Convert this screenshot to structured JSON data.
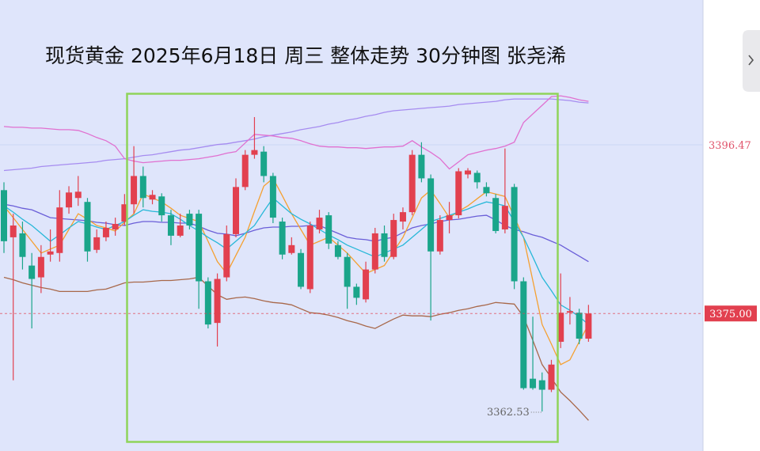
{
  "chart_data": {
    "type": "candlestick",
    "title": "现货黄金 2025年6月18日 周三 整体走势 30分钟图 张尧浠",
    "up_color": "#e2404f",
    "down_color": "#1aa58a",
    "ylim": [
      3357.5,
      3414.9
    ],
    "yticks": [
      3396.47
    ],
    "last_price": {
      "value": 3375,
      "label": "3375.00"
    },
    "low_label": 3362.53,
    "open": [
      3390.7,
      3384.7,
      3385.2,
      3381.1,
      3379.6,
      3382.5,
      3382.7,
      3388.5,
      3389.7,
      3389.2,
      3383.1,
      3384.7,
      3385.7,
      3386.7,
      3388.9,
      3392.5,
      3389.5,
      3389.9,
      3387.5,
      3384.9,
      3387.7,
      3387.7,
      3379.1,
      3373.8,
      3379.6,
      3385.1,
      3391.1,
      3395.2,
      3395.6,
      3392.5,
      3386.7,
      3382.7,
      3382.7,
      3378.1,
      3385.7,
      3387.5,
      3383.7,
      3382.2,
      3378.4,
      3376.8,
      3380.6,
      3385.2,
      3382.2,
      3386.7,
      3387.9,
      3395.2,
      3392.2,
      3382.9,
      3386.9,
      3387.5,
      3392.7,
      3392.9,
      3391.1,
      3389.7,
      3385.7,
      3391.1,
      3379.1,
      3366.7,
      3366.5,
      3365.3,
      3371.4,
      3375.1,
      3375.1,
      3371.8
    ],
    "high": [
      3391.7,
      3387.7,
      3386.7,
      3382.7,
      3383.7,
      3385.7,
      3390.7,
      3391.2,
      3392.5,
      3389.7,
      3385.7,
      3386.7,
      3387.2,
      3390.2,
      3396.3,
      3393.7,
      3390.7,
      3390.3,
      3388.2,
      3387.7,
      3388.2,
      3388.2,
      3379.6,
      3380.1,
      3386.2,
      3392.2,
      3395.8,
      3400.0,
      3396.3,
      3392.9,
      3387.2,
      3384.7,
      3383.2,
      3386.7,
      3388.2,
      3387.9,
      3384.2,
      3382.7,
      3378.8,
      3381.6,
      3385.9,
      3386.2,
      3387.7,
      3388.5,
      3395.8,
      3396.8,
      3392.7,
      3387.5,
      3389.2,
      3393.5,
      3393.5,
      3393.2,
      3391.7,
      3390.2,
      3396.0,
      3391.5,
      3379.6,
      3374.6,
      3367.5,
      3369.1,
      3380.1,
      3377.1,
      3375.6,
      3376.1
    ],
    "low": [
      3382.7,
      3366.5,
      3380.6,
      3373.1,
      3377.6,
      3381.6,
      3381.6,
      3387.7,
      3388.7,
      3381.6,
      3382.7,
      3384.2,
      3384.9,
      3386.2,
      3387.7,
      3388.5,
      3388.9,
      3386.7,
      3383.7,
      3384.7,
      3385.7,
      3375.6,
      3373.1,
      3370.8,
      3379.1,
      3384.7,
      3390.7,
      3394.7,
      3391.7,
      3386.5,
      3381.9,
      3382.5,
      3378.1,
      3377.6,
      3385.2,
      3383.2,
      3381.9,
      3375.6,
      3376.1,
      3376.4,
      3380.1,
      3381.6,
      3381.9,
      3385.7,
      3387.5,
      3391.7,
      3374.1,
      3382.5,
      3385.2,
      3387.1,
      3392.2,
      3390.9,
      3389.9,
      3385.2,
      3385.2,
      3378.1,
      3365.3,
      3365.3,
      3362.53,
      3365.0,
      3370.6,
      3373.6,
      3371.1,
      3371.4
    ],
    "close": [
      3384.2,
      3386.2,
      3382.2,
      3379.4,
      3382.2,
      3382.9,
      3388.5,
      3390.4,
      3390.5,
      3382.9,
      3384.7,
      3385.9,
      3386.4,
      3388.9,
      3392.5,
      3389.7,
      3390.1,
      3387.5,
      3384.9,
      3386.2,
      3386.2,
      3379.1,
      3373.6,
      3379.4,
      3385.1,
      3391.1,
      3395.2,
      3395.8,
      3392.5,
      3387.2,
      3382.5,
      3383.7,
      3378.4,
      3386.2,
      3387.2,
      3383.9,
      3382.2,
      3378.4,
      3377.0,
      3380.6,
      3385.2,
      3382.2,
      3386.9,
      3387.9,
      3395.2,
      3392.2,
      3382.9,
      3386.9,
      3387.5,
      3393.1,
      3393.2,
      3391.7,
      3390.3,
      3385.5,
      3388.7,
      3379.1,
      3365.5,
      3365.5,
      3365.3,
      3368.5,
      3375.1,
      3375.3,
      3371.8,
      3375.0
    ],
    "lines": [
      {
        "color": "#a68cf0",
        "values": [
          3393.2,
          3393.3,
          3393.4,
          3393.5,
          3393.7,
          3393.8,
          3393.9,
          3394.0,
          3394.1,
          3394.2,
          3394.3,
          3394.5,
          3394.6,
          3394.7,
          3394.9,
          3395.1,
          3395.2,
          3395.4,
          3395.6,
          3395.8,
          3395.9,
          3396.1,
          3396.3,
          3396.5,
          3396.6,
          3396.8,
          3397.0,
          3397.2,
          3397.5,
          3397.7,
          3397.9,
          3398.1,
          3398.4,
          3398.6,
          3398.8,
          3399.1,
          3399.3,
          3399.6,
          3399.8,
          3400.1,
          3400.3,
          3400.6,
          3400.8,
          3400.9,
          3401.0,
          3401.1,
          3401.2,
          3401.3,
          3401.4,
          3401.6,
          3401.7,
          3401.8,
          3401.9,
          3402.0,
          3402.2,
          3402.3,
          3402.3,
          3402.3,
          3402.3,
          3402.3,
          3402.2,
          3402.1,
          3401.9,
          3401.8
        ]
      },
      {
        "color": "#e070d0",
        "values": [
          3398.8,
          3398.7,
          3398.7,
          3398.6,
          3398.6,
          3398.5,
          3398.4,
          3398.4,
          3398.3,
          3397.9,
          3397.4,
          3397.0,
          3396.3,
          3394.7,
          3394.4,
          3394.2,
          3394.3,
          3394.4,
          3394.5,
          3394.5,
          3394.6,
          3394.7,
          3394.9,
          3395.1,
          3395.4,
          3395.6,
          3396.7,
          3397.8,
          3397.7,
          3397.6,
          3397.4,
          3397.3,
          3397.0,
          3396.6,
          3396.3,
          3396.2,
          3396.2,
          3396.1,
          3396.1,
          3396.0,
          3396.1,
          3396.2,
          3396.2,
          3396.3,
          3397.0,
          3396.2,
          3395.5,
          3394.7,
          3393.4,
          3394.3,
          3395.2,
          3395.5,
          3395.8,
          3396.0,
          3396.3,
          3396.8,
          3399.3,
          3400.4,
          3401.5,
          3402.6,
          3402.7,
          3402.5,
          3402.2,
          3402.0
        ]
      },
      {
        "color": "#6a5ed8",
        "values": [
          3388.9,
          3388.7,
          3388.4,
          3388.2,
          3387.7,
          3387.2,
          3387.1,
          3387.0,
          3386.9,
          3386.8,
          3386.6,
          3386.5,
          3386.3,
          3386.2,
          3386.5,
          3386.7,
          3386.7,
          3386.6,
          3386.6,
          3386.5,
          3386.5,
          3386.1,
          3385.6,
          3385.2,
          3385.1,
          3384.9,
          3385.2,
          3385.6,
          3385.9,
          3386.0,
          3386.0,
          3386.1,
          3386.1,
          3386.2,
          3386.2,
          3385.7,
          3385.2,
          3384.7,
          3384.5,
          3384.4,
          3384.2,
          3384.5,
          3384.7,
          3385.3,
          3385.9,
          3386.2,
          3386.4,
          3386.7,
          3386.9,
          3387.0,
          3387.2,
          3387.4,
          3387.5,
          3386.9,
          3386.2,
          3385.7,
          3385.4,
          3385.0,
          3384.7,
          3384.2,
          3383.7,
          3383.0,
          3382.3,
          3381.6
        ]
      },
      {
        "color": "#a8684a",
        "values": [
          3379.6,
          3379.3,
          3378.9,
          3378.6,
          3378.3,
          3378.1,
          3377.8,
          3377.8,
          3377.8,
          3377.8,
          3378.0,
          3378.1,
          3378.5,
          3378.9,
          3379.0,
          3379.0,
          3379.1,
          3379.2,
          3379.2,
          3379.3,
          3379.4,
          3379.6,
          3378.5,
          3377.4,
          3376.8,
          3377.0,
          3377.1,
          3376.9,
          3376.6,
          3376.4,
          3376.3,
          3376.1,
          3375.6,
          3375.1,
          3375.0,
          3374.8,
          3374.5,
          3374.1,
          3373.8,
          3373.4,
          3373.1,
          3373.7,
          3374.3,
          3374.8,
          3374.7,
          3374.7,
          3374.6,
          3374.9,
          3375.1,
          3375.4,
          3375.6,
          3375.9,
          3376.1,
          3376.4,
          3376.3,
          3376.2,
          3374.6,
          3371.6,
          3368.5,
          3366.8,
          3365.0,
          3363.9,
          3362.7,
          3361.4
        ]
      },
      {
        "color": "#f5a030",
        "values": [
          3388.7,
          3387.2,
          3385.7,
          3384.2,
          3382.7,
          3383.2,
          3383.7,
          3385.7,
          3387.7,
          3387.0,
          3386.2,
          3385.9,
          3385.5,
          3386.6,
          3387.7,
          3390.2,
          3389.7,
          3389.2,
          3388.4,
          3387.5,
          3387.1,
          3386.7,
          3384.2,
          3381.6,
          3380.1,
          3382.4,
          3384.7,
          3388.0,
          3391.2,
          3392.2,
          3390.0,
          3387.7,
          3385.7,
          3383.7,
          3384.2,
          3384.7,
          3383.7,
          3382.7,
          3381.4,
          3380.1,
          3380.6,
          3381.1,
          3382.9,
          3384.7,
          3387.2,
          3389.7,
          3390.7,
          3389.0,
          3387.2,
          3388.0,
          3388.7,
          3389.6,
          3390.5,
          3390.2,
          3389.9,
          3387.3,
          3384.7,
          3379.2,
          3373.6,
          3371.1,
          3368.5,
          3369.1,
          3371.4,
          3373.6
        ]
      },
      {
        "color": "#28b8d8",
        "values": [
          3388.7,
          3387.9,
          3387.0,
          3386.2,
          3385.2,
          3384.2,
          3385.0,
          3385.9,
          3386.7,
          3386.4,
          3386.0,
          3385.7,
          3386.2,
          3386.7,
          3387.5,
          3388.2,
          3388.0,
          3387.9,
          3387.7,
          3387.0,
          3386.2,
          3385.5,
          3384.7,
          3384.0,
          3383.2,
          3384.2,
          3385.2,
          3386.2,
          3388.0,
          3389.7,
          3388.7,
          3387.7,
          3387.0,
          3386.4,
          3385.7,
          3385.0,
          3384.4,
          3383.7,
          3383.2,
          3382.7,
          3382.2,
          3382.7,
          3383.2,
          3383.7,
          3384.7,
          3385.7,
          3386.7,
          3387.1,
          3387.5,
          3387.9,
          3388.3,
          3388.8,
          3389.2,
          3389.0,
          3388.7,
          3386.7,
          3384.7,
          3382.2,
          3379.6,
          3377.9,
          3376.1,
          3375.4,
          3374.6,
          3373.6
        ]
      }
    ]
  }
}
